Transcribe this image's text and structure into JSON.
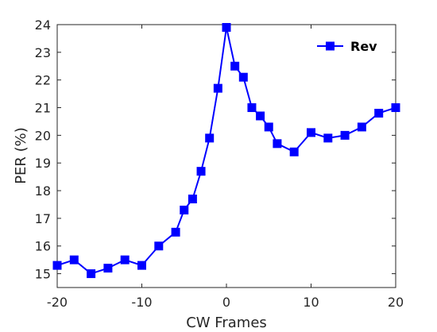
{
  "chart_data": {
    "type": "line",
    "xlabel": "CW Frames",
    "ylabel": "PER (%)",
    "xlim": [
      -20,
      20
    ],
    "ylim": [
      14.5,
      24
    ],
    "xticks": [
      -20,
      -10,
      0,
      10,
      20
    ],
    "yticks": [
      15,
      16,
      17,
      18,
      19,
      20,
      21,
      22,
      23,
      24
    ],
    "x_tick_labels": [
      "-20",
      "-10",
      "0",
      "10",
      "20"
    ],
    "y_tick_labels": [
      "15",
      "16",
      "17",
      "18",
      "19",
      "20",
      "21",
      "22",
      "23",
      "24"
    ],
    "grid": false,
    "legend_position": "top-right",
    "marker": "square",
    "series": [
      {
        "name": "Rev",
        "color": "#0000ff",
        "x": [
          -20,
          -18,
          -16,
          -14,
          -12,
          -10,
          -8,
          -6,
          -5,
          -4,
          -3,
          -2,
          -1,
          0,
          1,
          2,
          3,
          4,
          5,
          6,
          8,
          10,
          12,
          14,
          16,
          18,
          20
        ],
        "y": [
          15.3,
          15.5,
          15.0,
          15.2,
          15.5,
          15.3,
          16.0,
          16.5,
          17.3,
          17.7,
          18.7,
          19.9,
          21.7,
          23.9,
          22.5,
          22.1,
          21.0,
          20.7,
          20.3,
          19.7,
          19.4,
          20.1,
          19.9,
          20.0,
          20.3,
          20.8,
          21.0
        ]
      }
    ]
  }
}
